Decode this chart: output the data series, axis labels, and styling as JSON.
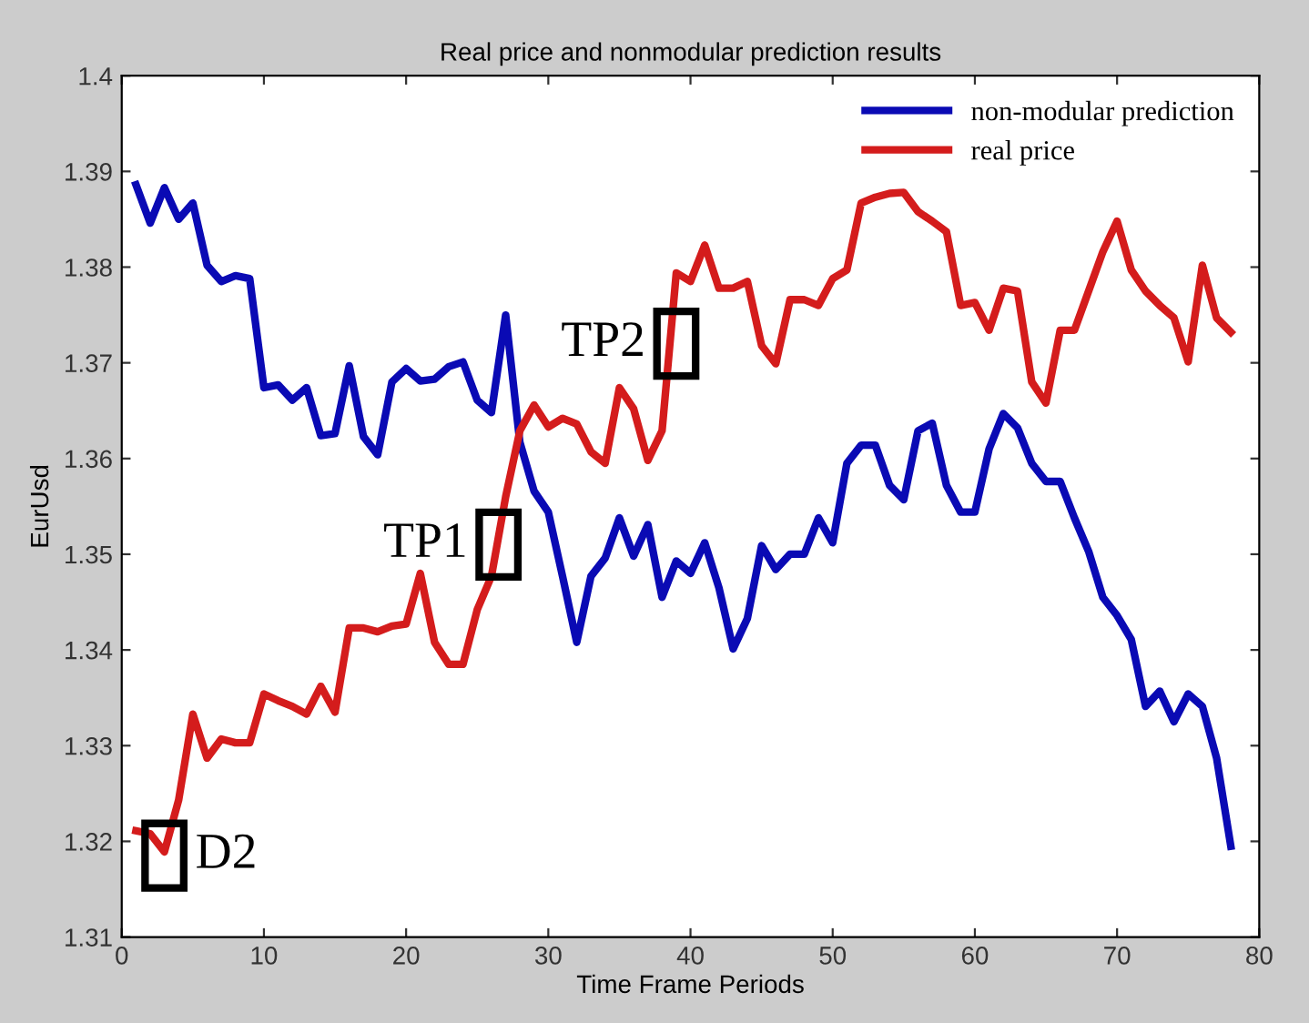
{
  "chart_data": {
    "type": "line",
    "title": "Real price and nonmodular prediction results",
    "xlabel": "Time Frame Periods",
    "ylabel": "EurUsd",
    "xlim": [
      0,
      80
    ],
    "ylim": [
      1.31,
      1.4
    ],
    "xticks": [
      0,
      10,
      20,
      30,
      40,
      50,
      60,
      70,
      80
    ],
    "yticks": [
      1.31,
      1.32,
      1.33,
      1.34,
      1.35,
      1.36,
      1.37,
      1.38,
      1.39,
      1.4
    ],
    "grid": false,
    "legend": "top right",
    "line_style": "solid",
    "marker": "none",
    "annotations": [
      {
        "text": "D2",
        "x": 3,
        "y": 1.3185
      },
      {
        "text": "TP1",
        "x": 26.5,
        "y": 1.351
      },
      {
        "text": "TP2",
        "x": 39,
        "y": 1.372
      }
    ],
    "series": [
      {
        "name": "non-modular prediction",
        "color": "#0a0ab4",
        "x": [
          1,
          2,
          3,
          4,
          5,
          6,
          7,
          8,
          9,
          10,
          11,
          12,
          13,
          14,
          15,
          16,
          17,
          18,
          19,
          20,
          21,
          22,
          23,
          24,
          25,
          26,
          27,
          28,
          29,
          30,
          31,
          32,
          33,
          34,
          35,
          36,
          37,
          38,
          39,
          40,
          41,
          42,
          43,
          44,
          45,
          46,
          47,
          48,
          49,
          50,
          51,
          52,
          53,
          54,
          55,
          56,
          57,
          58,
          59,
          60,
          61,
          62,
          63,
          64,
          65,
          66,
          67,
          68,
          69,
          70,
          71,
          72,
          73,
          74,
          75,
          76,
          77,
          78
        ],
        "values": [
          1.3886,
          1.3846,
          1.3883,
          1.385,
          1.3867,
          1.3802,
          1.3785,
          1.3791,
          1.3788,
          1.3674,
          1.3677,
          1.3661,
          1.3674,
          1.3624,
          1.3626,
          1.3697,
          1.3623,
          1.3604,
          1.368,
          1.3694,
          1.3681,
          1.3683,
          1.3696,
          1.3701,
          1.3661,
          1.3648,
          1.375,
          1.3617,
          1.3566,
          1.3544,
          1.3477,
          1.3408,
          1.3477,
          1.3496,
          1.3538,
          1.3498,
          1.3531,
          1.3455,
          1.3493,
          1.348,
          1.3512,
          1.3465,
          1.3401,
          1.3433,
          1.3509,
          1.3484,
          1.35,
          1.35,
          1.3538,
          1.3512,
          1.3595,
          1.3614,
          1.3614,
          1.3572,
          1.3557,
          1.3629,
          1.3637,
          1.3572,
          1.3544,
          1.3544,
          1.361,
          1.3647,
          1.3632,
          1.3595,
          1.3576,
          1.3576,
          1.3538,
          1.3503,
          1.3455,
          1.3436,
          1.3411,
          1.3341,
          1.3357,
          1.3325,
          1.3354,
          1.3341,
          1.3287,
          1.3195
        ]
      },
      {
        "name": "real price",
        "color": "#d41c1c",
        "x": [
          1,
          2,
          3,
          4,
          5,
          6,
          7,
          8,
          9,
          10,
          11,
          12,
          13,
          14,
          15,
          16,
          17,
          18,
          19,
          20,
          21,
          22,
          23,
          24,
          25,
          26,
          27,
          28,
          29,
          30,
          31,
          32,
          33,
          34,
          35,
          36,
          37,
          38,
          39,
          40,
          41,
          42,
          43,
          44,
          45,
          46,
          47,
          48,
          49,
          50,
          51,
          52,
          53,
          54,
          55,
          56,
          57,
          58,
          59,
          60,
          61,
          62,
          63,
          64,
          65,
          66,
          67,
          68,
          69,
          70,
          71,
          72,
          73,
          74,
          75,
          76,
          77,
          78
        ],
        "values": [
          1.3211,
          1.3208,
          1.3189,
          1.3243,
          1.3333,
          1.3287,
          1.3307,
          1.3303,
          1.3303,
          1.3354,
          1.3347,
          1.3341,
          1.3333,
          1.3362,
          1.3335,
          1.3423,
          1.3423,
          1.3419,
          1.3425,
          1.3427,
          1.348,
          1.3408,
          1.3385,
          1.3385,
          1.3442,
          1.3477,
          1.356,
          1.3629,
          1.3656,
          1.3633,
          1.3642,
          1.3636,
          1.3607,
          1.3595,
          1.3674,
          1.3652,
          1.3598,
          1.3629,
          1.3794,
          1.3785,
          1.3823,
          1.3778,
          1.3778,
          1.3785,
          1.3718,
          1.3699,
          1.3766,
          1.3766,
          1.376,
          1.3788,
          1.3797,
          1.3867,
          1.3873,
          1.3877,
          1.3878,
          1.3858,
          1.3848,
          1.3837,
          1.376,
          1.3763,
          1.3734,
          1.3778,
          1.3775,
          1.368,
          1.3658,
          1.3734,
          1.3734,
          1.3775,
          1.3816,
          1.3848,
          1.3797,
          1.3775,
          1.376,
          1.3747,
          1.3701,
          1.3802,
          1.3747,
          1.3732
        ]
      }
    ]
  }
}
